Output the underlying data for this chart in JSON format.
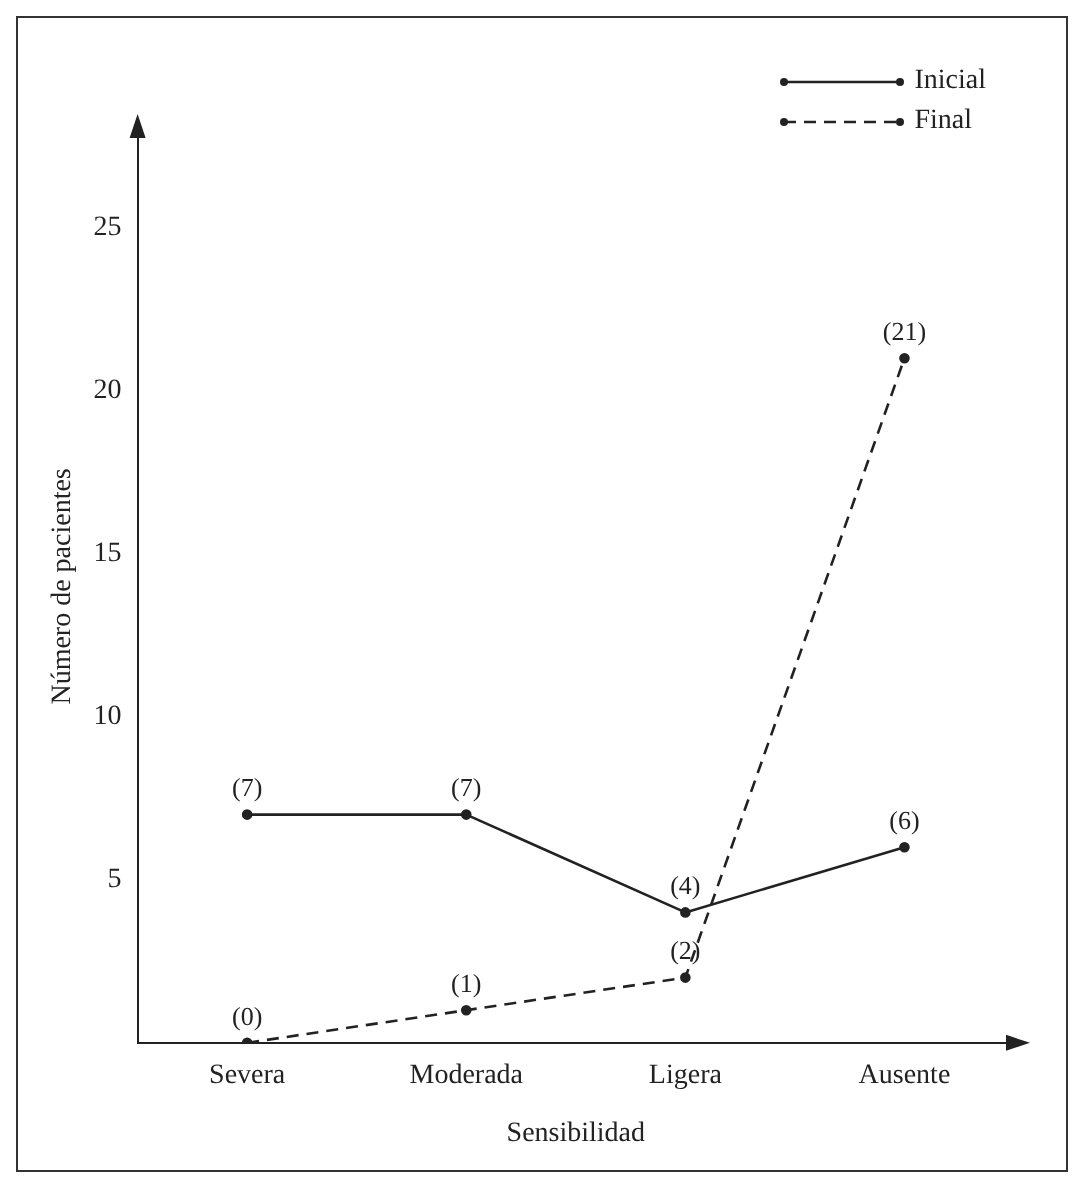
{
  "chart_data": {
    "type": "line",
    "xlabel": "Sensibilidad",
    "ylabel": "Número de pacientes",
    "categories": [
      "Severa",
      "Moderada",
      "Ligera",
      "Ausente"
    ],
    "series": [
      {
        "name": "Inicial",
        "color": "#222222",
        "values": [
          7,
          7,
          4,
          6
        ],
        "value_labels": [
          "(7)",
          "(7)",
          "(4)",
          "(6)"
        ],
        "line_style": "solid"
      },
      {
        "name": "Final",
        "color": "#222222",
        "values": [
          0,
          1,
          2,
          21
        ],
        "value_labels": [
          "(0)",
          "(1)",
          "(2)",
          "(21)"
        ],
        "line_style": "dashed"
      }
    ],
    "ylim": [
      0,
      28
    ],
    "yticks": [
      5,
      10,
      15,
      20,
      25
    ],
    "grid": false,
    "legend": "top right",
    "marker": "circle"
  }
}
